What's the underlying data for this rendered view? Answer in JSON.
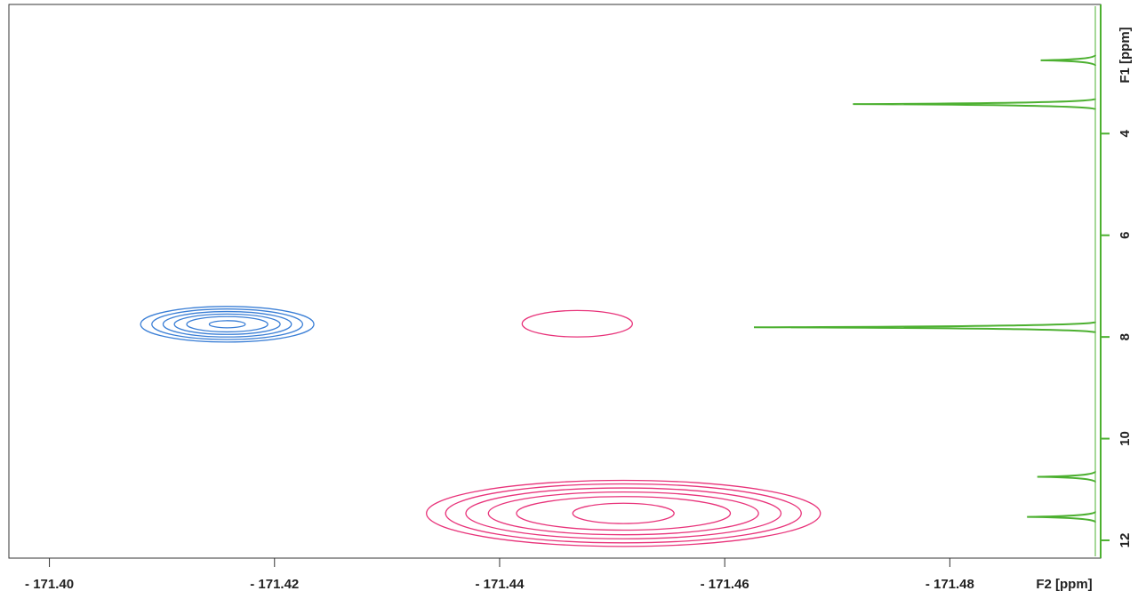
{
  "chart_data": {
    "type": "contour",
    "x_label": "F2 [ppm]",
    "y_label": "F1 [ppm]",
    "xlim": [
      -171.3964,
      -171.4934
    ],
    "ylim": [
      1.46,
      12.35
    ],
    "xticks": [
      {
        "value": -171.4,
        "label": "- 171.40"
      },
      {
        "value": -171.42,
        "label": "- 171.42"
      },
      {
        "value": -171.44,
        "label": "- 171.44"
      },
      {
        "value": -171.46,
        "label": "- 171.46"
      },
      {
        "value": -171.48,
        "label": "- 171.48"
      }
    ],
    "yticks": [
      4,
      6,
      8,
      10,
      12
    ],
    "peaks": [
      {
        "color": "#3b7fd6",
        "x": -171.4158,
        "y": 7.75,
        "half_widths": [
          0.0077,
          0.0067,
          0.0057,
          0.0047,
          0.0036,
          0.0016
        ],
        "half_heights": [
          0.35,
          0.3,
          0.25,
          0.2,
          0.15,
          0.07
        ]
      },
      {
        "color": "#e8337a",
        "x": -171.4469,
        "y": 7.74,
        "half_widths": [
          0.0049
        ],
        "half_heights": [
          0.26
        ]
      },
      {
        "color": "#e8337a",
        "x": -171.451,
        "y": 11.47,
        "half_widths": [
          0.0175,
          0.0158,
          0.014,
          0.012,
          0.0095,
          0.0045
        ],
        "half_heights": [
          0.65,
          0.58,
          0.5,
          0.42,
          0.33,
          0.2
        ]
      }
    ],
    "projection": {
      "color": "#4cb030",
      "positions": [
        2.56,
        3.42,
        7.81,
        10.75,
        11.54
      ],
      "intensities": [
        0.16,
        0.71,
        1.0,
        0.17,
        0.2
      ]
    }
  }
}
